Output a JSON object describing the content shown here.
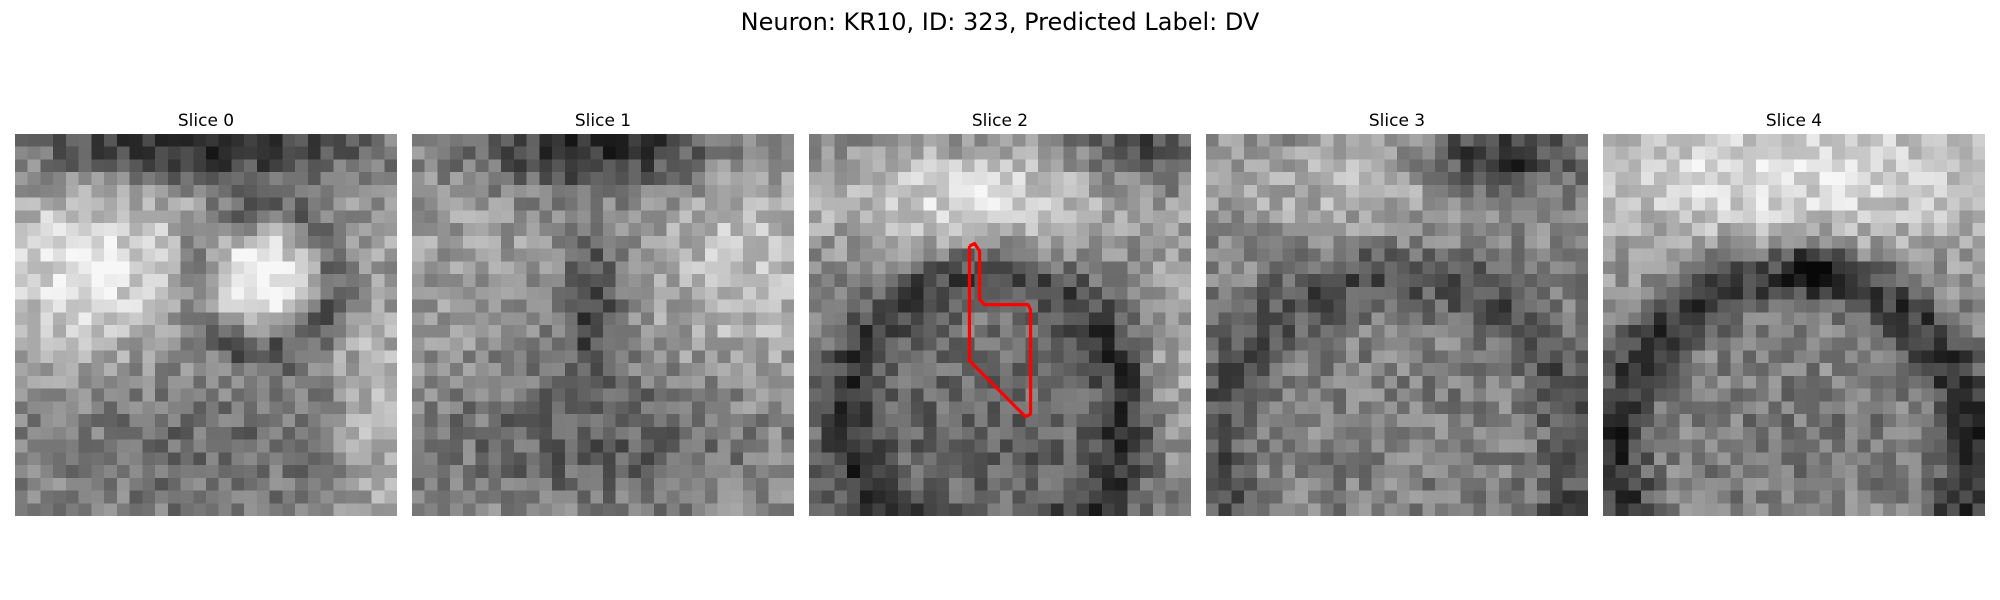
{
  "figure": {
    "title": "Neuron: KR10, ID: 323, Predicted Label: DV"
  },
  "panels": [
    {
      "title": "Slice 0",
      "seed": 11,
      "pattern": "slice0"
    },
    {
      "title": "Slice 1",
      "seed": 23,
      "pattern": "slice1"
    },
    {
      "title": "Slice 2",
      "seed": 37,
      "pattern": "slice2"
    },
    {
      "title": "Slice 3",
      "seed": 41,
      "pattern": "slice3"
    },
    {
      "title": "Slice 4",
      "seed": 53,
      "pattern": "slice4"
    }
  ],
  "contour": {
    "panel": 2,
    "color": "#ff0000"
  }
}
